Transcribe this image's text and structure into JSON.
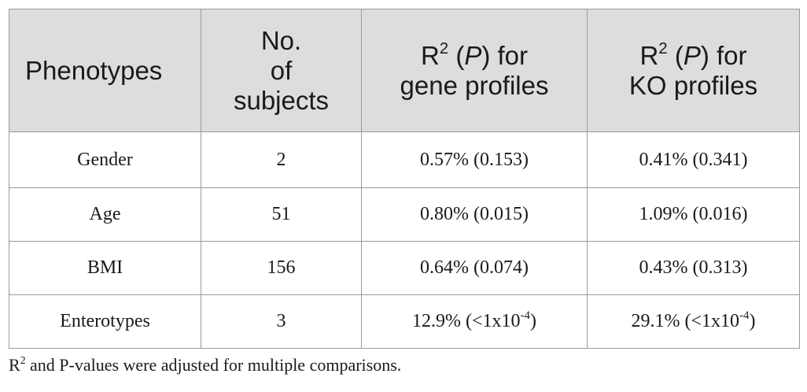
{
  "table": {
    "headers": {
      "phenotypes": "Phenotypes",
      "subjects": {
        "line1": "No.",
        "line2": "of",
        "line3": "subjects"
      },
      "gene": {
        "r": "R",
        "sup": "2",
        "p_open": " (",
        "p": "P",
        "p_close": ") for",
        "line2": "gene profiles"
      },
      "ko": {
        "r": "R",
        "sup": "2",
        "p_open": " (",
        "p": "P",
        "p_close": ") for",
        "line2": "KO profiles"
      }
    },
    "rows": [
      {
        "phenotype": "Gender",
        "subjects": "2",
        "gene": "0.57% (0.153)",
        "ko": "0.41% (0.341)"
      },
      {
        "phenotype": "Age",
        "subjects": "51",
        "gene": "0.80% (0.015)",
        "ko": "1.09% (0.016)"
      },
      {
        "phenotype": "BMI",
        "subjects": "156",
        "gene": "0.64% (0.074)",
        "ko": "0.43% (0.313)"
      },
      {
        "phenotype": "Enterotypes",
        "subjects": "3",
        "gene_prefix": "12.9% (<1x10",
        "gene_sup": "-4",
        "gene_suffix": ")",
        "ko_prefix": "29.1% (<1x10",
        "ko_sup": "-4",
        "ko_suffix": ")"
      }
    ]
  },
  "footnote": {
    "r": "R",
    "sup": "2",
    "text": " and P-values were adjusted for multiple comparisons."
  }
}
